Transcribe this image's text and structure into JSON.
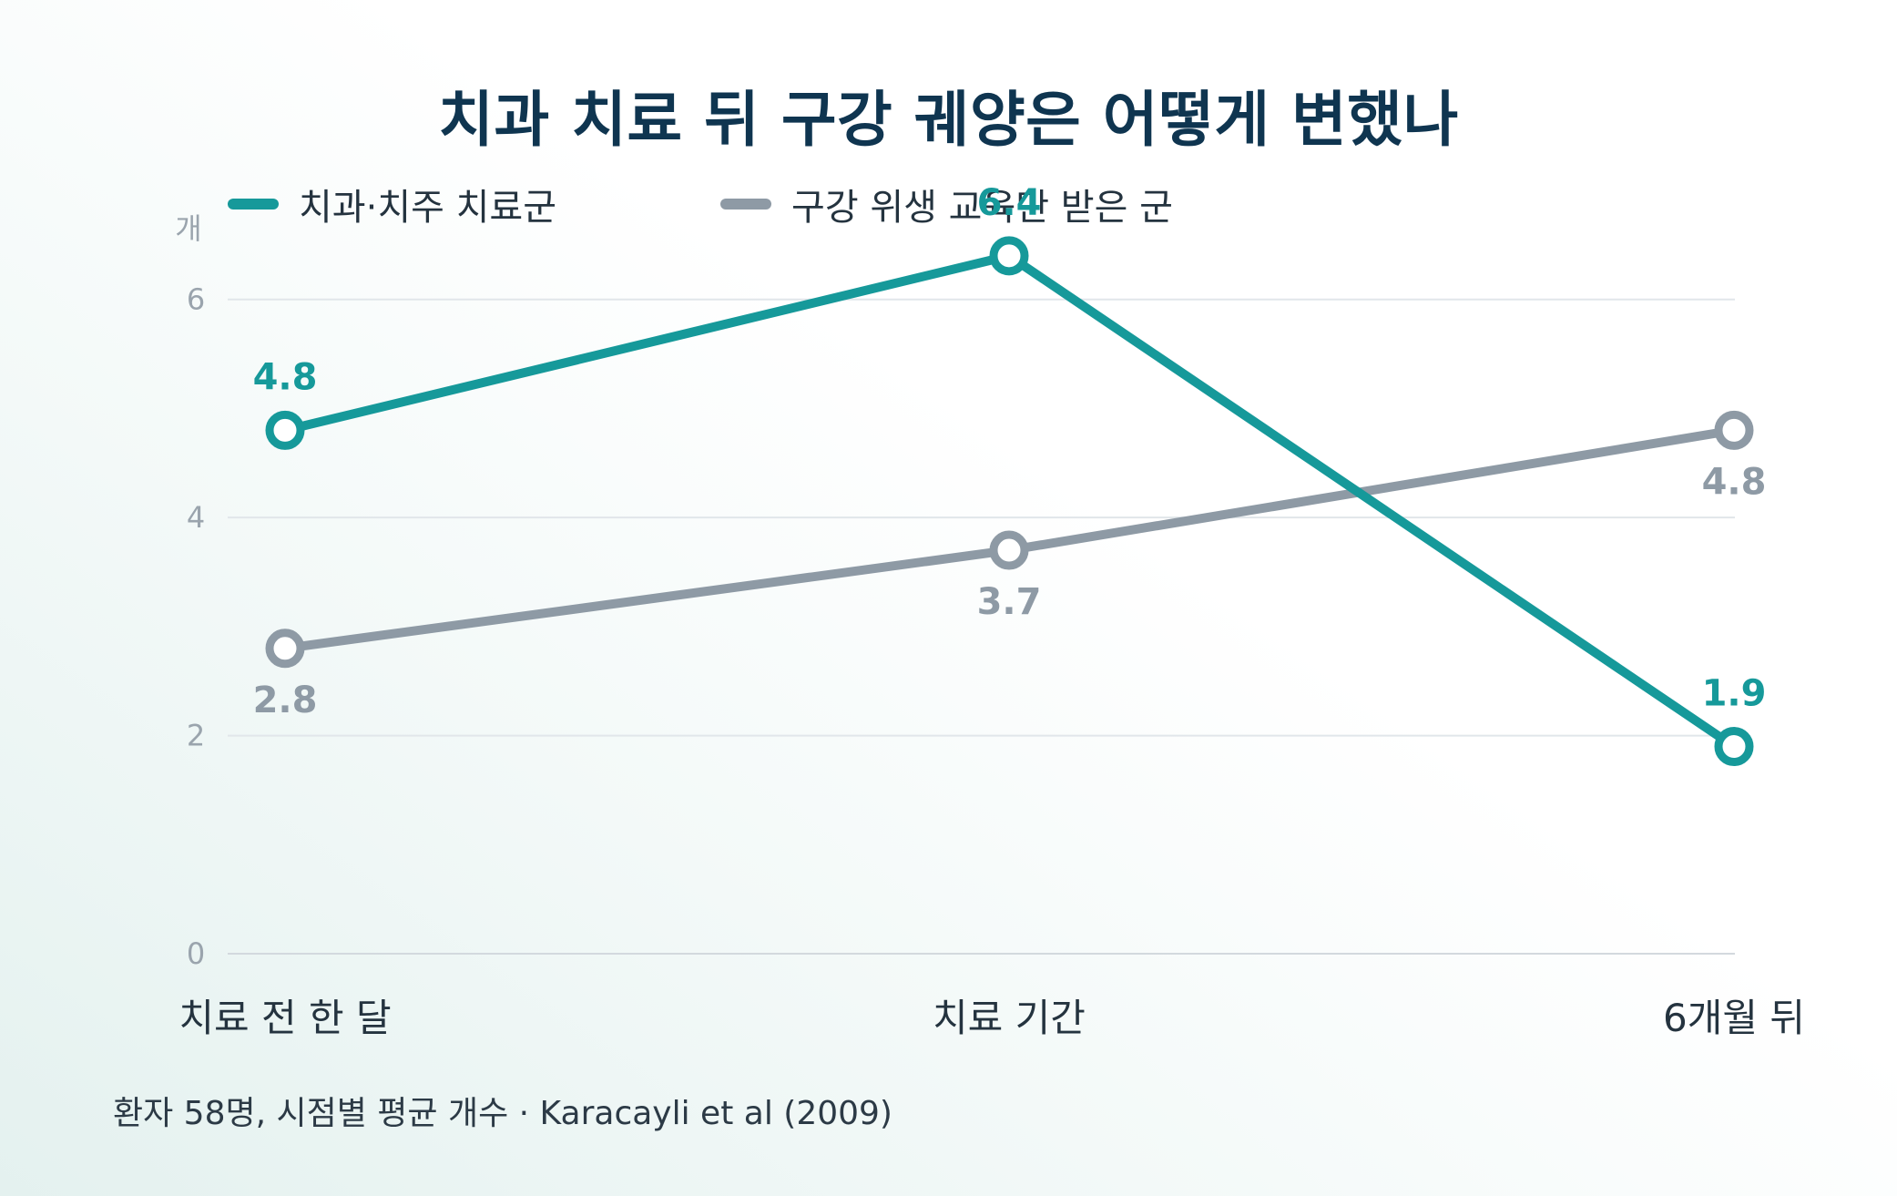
{
  "chart_data": {
    "type": "line",
    "title": "치과 치료 뒤 구강 궤양은 어떻게 변했나",
    "ylabel": "개",
    "xlabel": "",
    "categories": [
      "치료 전 한 달",
      "치료 기간",
      "6개월 뒤"
    ],
    "ylim": [
      0,
      7
    ],
    "yticks": [
      0,
      2,
      4,
      6
    ],
    "grid": true,
    "legend_position": "top-left",
    "series": [
      {
        "name": "치과·치주 치료군",
        "values": [
          4.8,
          6.4,
          1.9
        ],
        "labels": [
          "4.8",
          "6.4",
          "1.9"
        ],
        "label_positions": [
          "above",
          "above",
          "above"
        ],
        "color": "#16999a"
      },
      {
        "name": "구강 위생 교육만 받은 군",
        "values": [
          2.8,
          3.7,
          4.8
        ],
        "labels": [
          "2.8",
          "3.7",
          "4.8"
        ],
        "label_positions": [
          "below",
          "below",
          "below"
        ],
        "color": "#8e9aa5"
      }
    ],
    "footnote": "환자 58명, 시점별 평균 개수 · Karacayli et al (2009)"
  }
}
